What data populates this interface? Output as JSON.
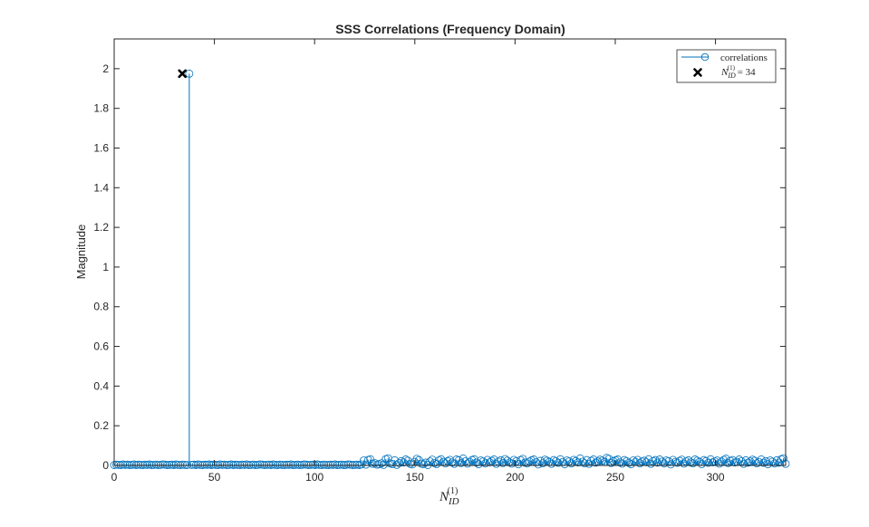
{
  "chart_data": {
    "type": "stem",
    "title": "SSS Correlations (Frequency Domain)",
    "xlabel": {
      "main": "N",
      "sub": "ID",
      "sup": "(1)"
    },
    "ylabel": "Magnitude",
    "xlim": [
      0,
      335
    ],
    "ylim": [
      0,
      2.15
    ],
    "xticks": [
      "0",
      "50",
      "100",
      "150",
      "200",
      "250",
      "300"
    ],
    "xtick_values": [
      0,
      50,
      100,
      150,
      200,
      250,
      300
    ],
    "yticks": [
      "0",
      "0.2",
      "0.4",
      "0.6",
      "0.8",
      "1",
      "1.2",
      "1.4",
      "1.6",
      "1.8",
      "2"
    ],
    "ytick_values": [
      0,
      0.2,
      0.4,
      0.6,
      0.8,
      1,
      1.2,
      1.4,
      1.6,
      1.8,
      2
    ],
    "series": [
      {
        "name": "correlations",
        "marker": "open-circle",
        "color": "#0072BD",
        "x_range": [
          0,
          335
        ],
        "values": [
          0.002,
          0.004,
          0.003,
          0.002,
          0.005,
          0.003,
          0.004,
          0.002,
          0.003,
          0.005,
          0.002,
          0.004,
          0.003,
          0.002,
          0.004,
          0.003,
          0.005,
          0.002,
          0.003,
          0.004,
          0.002,
          0.003,
          0.005,
          0.004,
          0.002,
          0.003,
          0.004,
          0.002,
          0.005,
          0.003,
          0.002,
          0.004,
          0.003,
          0.002,
          1.975,
          0.003,
          0.004,
          0.002,
          0.005,
          0.003,
          0.002,
          0.004,
          0.003,
          0.005,
          0.002,
          0.004,
          0.003,
          0.002,
          0.005,
          0.003,
          0.004,
          0.002,
          0.003,
          0.005,
          0.002,
          0.004,
          0.003,
          0.002,
          0.004,
          0.003,
          0.005,
          0.002,
          0.003,
          0.004,
          0.002,
          0.003,
          0.005,
          0.004,
          0.002,
          0.003,
          0.004,
          0.002,
          0.005,
          0.003,
          0.002,
          0.004,
          0.003,
          0.002,
          0.004,
          0.003,
          0.005,
          0.002,
          0.003,
          0.004,
          0.002,
          0.003,
          0.005,
          0.004,
          0.002,
          0.003,
          0.004,
          0.002,
          0.005,
          0.003,
          0.002,
          0.004,
          0.003,
          0.002,
          0.004,
          0.003,
          0.005,
          0.002,
          0.003,
          0.004,
          0.002,
          0.003,
          0.005,
          0.004,
          0.002,
          0.003,
          0.004,
          0.002,
          0.005,
          0.025,
          0.004,
          0.028,
          0.031,
          0.008,
          0.012,
          0.004,
          0.006,
          0.011,
          0.003,
          0.032,
          0.036,
          0.01,
          0.007,
          0.026,
          0.003,
          0.012,
          0.022,
          0.015,
          0.03,
          0.024,
          0.008,
          0.005,
          0.018,
          0.033,
          0.027,
          0.009,
          0.006,
          0.014,
          0.002,
          0.02,
          0.029,
          0.012,
          0.007,
          0.025,
          0.031,
          0.018,
          0.01,
          0.022,
          0.028,
          0.015,
          0.008,
          0.03,
          0.026,
          0.012,
          0.035,
          0.021,
          0.009,
          0.017,
          0.027,
          0.031,
          0.014,
          0.006,
          0.025,
          0.02,
          0.01,
          0.028,
          0.016,
          0.023,
          0.03,
          0.008,
          0.019,
          0.026,
          0.012,
          0.032,
          0.024,
          0.015,
          0.009,
          0.028,
          0.021,
          0.006,
          0.027,
          0.033,
          0.014,
          0.01,
          0.02,
          0.026,
          0.03,
          0.016,
          0.005,
          0.023,
          0.011,
          0.029,
          0.024,
          0.018,
          0.008,
          0.027,
          0.021,
          0.013,
          0.031,
          0.017,
          0.006,
          0.025,
          0.02,
          0.01,
          0.028,
          0.022,
          0.015,
          0.035,
          0.019,
          0.011,
          0.027,
          0.008,
          0.023,
          0.03,
          0.014,
          0.02,
          0.029,
          0.024,
          0.017,
          0.038,
          0.033,
          0.012,
          0.022,
          0.026,
          0.03,
          0.015,
          0.009,
          0.027,
          0.021,
          0.013,
          0.006,
          0.025,
          0.018,
          0.028,
          0.011,
          0.02,
          0.024,
          0.016,
          0.031,
          0.008,
          0.022,
          0.027,
          0.014,
          0.03,
          0.019,
          0.01,
          0.025,
          0.021,
          0.005,
          0.028,
          0.017,
          0.013,
          0.023,
          0.029,
          0.009,
          0.02,
          0.026,
          0.015,
          0.011,
          0.03,
          0.024,
          0.018,
          0.007,
          0.027,
          0.022,
          0.013,
          0.031,
          0.016,
          0.02,
          0.025,
          0.009,
          0.019,
          0.028,
          0.034,
          0.012,
          0.023,
          0.027,
          0.015,
          0.018,
          0.03,
          0.021,
          0.008,
          0.026,
          0.014,
          0.02,
          0.029,
          0.024,
          0.011,
          0.017,
          0.03,
          0.013,
          0.022,
          0.006,
          0.025,
          0.019,
          0.01,
          0.026,
          0.014,
          0.031,
          0.036,
          0.008
        ]
      },
      {
        "name": "N_ID^(1) = 34",
        "marker": "x",
        "color": "#000000",
        "x": [
          34
        ],
        "y": [
          1.975
        ]
      }
    ],
    "legend": {
      "placement": "top-right",
      "entries": [
        {
          "label": "correlations"
        },
        {
          "label": {
            "main": "N",
            "sub": "ID",
            "sup": "(1)",
            "suffix": " = 34"
          }
        }
      ]
    },
    "grid": false
  }
}
